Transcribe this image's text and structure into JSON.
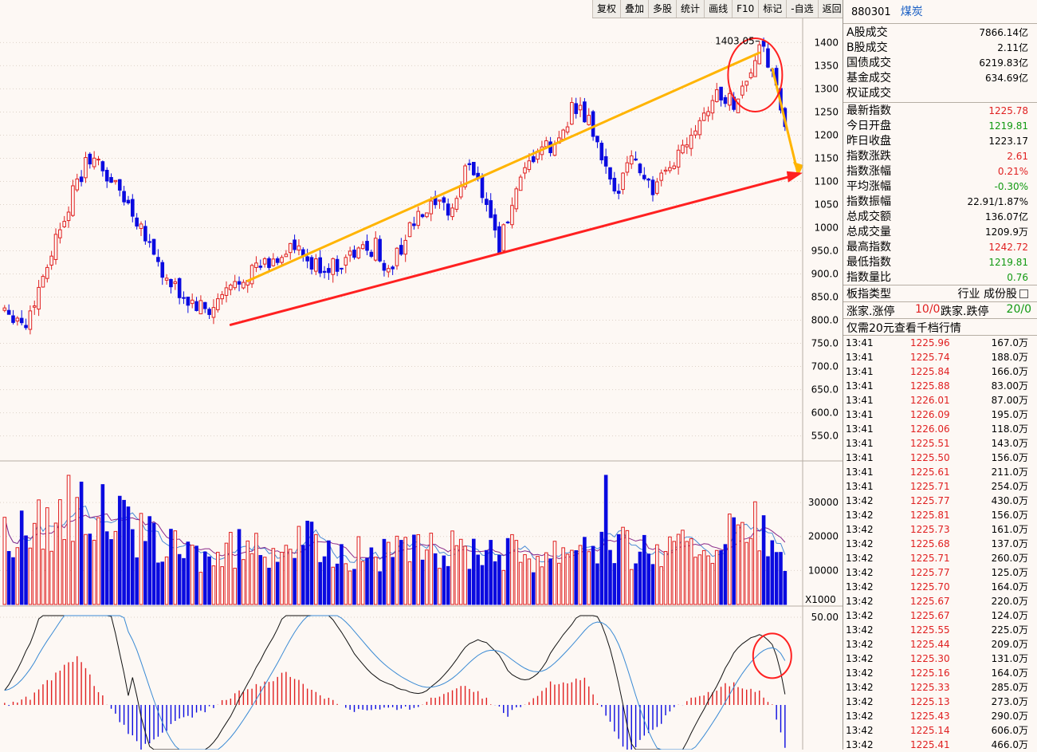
{
  "toolbar": [
    {
      "label": "复权",
      "name": "restore-rights-button"
    },
    {
      "label": "叠加",
      "name": "overlay-button"
    },
    {
      "label": "多股",
      "name": "multi-stock-button"
    },
    {
      "label": "统计",
      "name": "statistics-button"
    },
    {
      "label": "画线",
      "name": "draw-line-button"
    },
    {
      "label": "F10",
      "name": "f10-button"
    },
    {
      "label": "标记",
      "name": "mark-button"
    },
    {
      "label": "-自选",
      "name": "remove-watchlist-button"
    },
    {
      "label": "返回",
      "name": "back-button"
    }
  ],
  "stock": {
    "code": "880301",
    "name": "煤炭"
  },
  "summary": [
    {
      "label": "A股成交",
      "value": "7866.14亿",
      "color": "#000000"
    },
    {
      "label": "B股成交",
      "value": "2.11亿",
      "color": "#000000"
    },
    {
      "label": "国债成交",
      "value": "6219.83亿",
      "color": "#000000"
    },
    {
      "label": "基金成交",
      "value": "634.69亿",
      "color": "#000000"
    },
    {
      "label": "权证成交",
      "value": "",
      "color": "#000000"
    }
  ],
  "quote": [
    {
      "label": "最新指数",
      "value": "1225.78",
      "color": "#e02020"
    },
    {
      "label": "今日开盘",
      "value": "1219.81",
      "color": "#119911"
    },
    {
      "label": "昨日收盘",
      "value": "1223.17",
      "color": "#000000"
    },
    {
      "label": "指数涨跌",
      "value": "2.61",
      "color": "#e02020"
    },
    {
      "label": "指数涨幅",
      "value": "0.21%",
      "color": "#e02020"
    },
    {
      "label": "平均涨幅",
      "value": "-0.30%",
      "color": "#119911"
    },
    {
      "label": "指数振幅",
      "value": "22.91/1.87%",
      "color": "#000000"
    },
    {
      "label": "总成交额",
      "value": "136.07亿",
      "color": "#000000"
    },
    {
      "label": "总成交量",
      "value": "1209.9万",
      "color": "#000000"
    },
    {
      "label": "最高指数",
      "value": "1242.72",
      "color": "#e02020"
    },
    {
      "label": "最低指数",
      "value": "1219.81",
      "color": "#119911"
    },
    {
      "label": "指数量比",
      "value": "0.76",
      "color": "#119911"
    }
  ],
  "sector": {
    "label": "板指类型",
    "value": "行业 成份股"
  },
  "limits": {
    "up_label": "涨家.涨停",
    "up_value": "10/0",
    "down_label": "跌家.跌停",
    "down_value": "20/0"
  },
  "notice": "仅需20元查看千档行情",
  "ticks": [
    {
      "t": "13:41",
      "p": "1225.96",
      "v": "167.0万"
    },
    {
      "t": "13:41",
      "p": "1225.74",
      "v": "188.0万"
    },
    {
      "t": "13:41",
      "p": "1225.84",
      "v": "166.0万"
    },
    {
      "t": "13:41",
      "p": "1225.88",
      "v": "83.00万"
    },
    {
      "t": "13:41",
      "p": "1226.01",
      "v": "87.00万"
    },
    {
      "t": "13:41",
      "p": "1226.09",
      "v": "195.0万"
    },
    {
      "t": "13:41",
      "p": "1226.06",
      "v": "118.0万"
    },
    {
      "t": "13:41",
      "p": "1225.51",
      "v": "143.0万"
    },
    {
      "t": "13:41",
      "p": "1225.50",
      "v": "156.0万"
    },
    {
      "t": "13:41",
      "p": "1225.61",
      "v": "211.0万"
    },
    {
      "t": "13:41",
      "p": "1225.71",
      "v": "254.0万"
    },
    {
      "t": "13:42",
      "p": "1225.77",
      "v": "430.0万"
    },
    {
      "t": "13:42",
      "p": "1225.81",
      "v": "156.0万"
    },
    {
      "t": "13:42",
      "p": "1225.73",
      "v": "161.0万"
    },
    {
      "t": "13:42",
      "p": "1225.68",
      "v": "137.0万"
    },
    {
      "t": "13:42",
      "p": "1225.71",
      "v": "260.0万"
    },
    {
      "t": "13:42",
      "p": "1225.77",
      "v": "125.0万"
    },
    {
      "t": "13:42",
      "p": "1225.70",
      "v": "164.0万"
    },
    {
      "t": "13:42",
      "p": "1225.67",
      "v": "220.0万"
    },
    {
      "t": "13:42",
      "p": "1225.67",
      "v": "124.0万"
    },
    {
      "t": "13:42",
      "p": "1225.55",
      "v": "225.0万"
    },
    {
      "t": "13:42",
      "p": "1225.44",
      "v": "209.0万"
    },
    {
      "t": "13:42",
      "p": "1225.30",
      "v": "131.0万"
    },
    {
      "t": "13:42",
      "p": "1225.16",
      "v": "164.0万"
    },
    {
      "t": "13:42",
      "p": "1225.33",
      "v": "285.0万"
    },
    {
      "t": "13:42",
      "p": "1225.13",
      "v": "273.0万"
    },
    {
      "t": "13:42",
      "p": "1225.43",
      "v": "290.0万"
    },
    {
      "t": "13:42",
      "p": "1225.14",
      "v": "606.0万"
    },
    {
      "t": "13:42",
      "p": "1225.41",
      "v": "466.0万"
    }
  ],
  "chart_data": {
    "type": "candlestick",
    "price_axis": {
      "ticks": [
        550,
        600,
        650,
        700,
        750,
        800,
        850,
        900,
        950,
        1000,
        1050,
        1100,
        1150,
        1200,
        1250,
        1300,
        1350,
        1400
      ],
      "tick_labels": [
        "550.0",
        "600.0",
        "650.0",
        "700.0",
        "750.0",
        "800.0",
        "850.0",
        "900.0",
        "950.0",
        "1000",
        "1050",
        "1100",
        "1150",
        "1200",
        "1250",
        "1300",
        "1350",
        "1400"
      ],
      "range": [
        520,
        1430
      ]
    },
    "volume_axis": {
      "ticks": [
        10000,
        20000,
        30000
      ],
      "unit": "X1000",
      "range": [
        0,
        38000
      ]
    },
    "macd_axis": {
      "ticks": [
        50
      ],
      "tick_labels": [
        "50.00"
      ]
    },
    "high_annotation": "1403.05",
    "anchors": [
      {
        "i": 0,
        "p": 830
      },
      {
        "i": 5,
        "p": 790
      },
      {
        "i": 14,
        "p": 1030
      },
      {
        "i": 20,
        "p": 1155
      },
      {
        "i": 27,
        "p": 1080
      },
      {
        "i": 33,
        "p": 990
      },
      {
        "i": 38,
        "p": 880
      },
      {
        "i": 43,
        "p": 840
      },
      {
        "i": 48,
        "p": 815
      },
      {
        "i": 52,
        "p": 860
      },
      {
        "i": 57,
        "p": 905
      },
      {
        "i": 63,
        "p": 925
      },
      {
        "i": 67,
        "p": 960
      },
      {
        "i": 72,
        "p": 915
      },
      {
        "i": 77,
        "p": 915
      },
      {
        "i": 82,
        "p": 945
      },
      {
        "i": 87,
        "p": 960
      },
      {
        "i": 90,
        "p": 900
      },
      {
        "i": 95,
        "p": 1000
      },
      {
        "i": 100,
        "p": 1040
      },
      {
        "i": 105,
        "p": 1040
      },
      {
        "i": 109,
        "p": 1145
      },
      {
        "i": 113,
        "p": 1060
      },
      {
        "i": 116,
        "p": 960
      },
      {
        "i": 119,
        "p": 1050
      },
      {
        "i": 125,
        "p": 1170
      },
      {
        "i": 129,
        "p": 1170
      },
      {
        "i": 133,
        "p": 1260
      },
      {
        "i": 137,
        "p": 1230
      },
      {
        "i": 141,
        "p": 1120
      },
      {
        "i": 143,
        "p": 1060
      },
      {
        "i": 146,
        "p": 1160
      },
      {
        "i": 149,
        "p": 1130
      },
      {
        "i": 152,
        "p": 1080
      },
      {
        "i": 155,
        "p": 1110
      },
      {
        "i": 159,
        "p": 1180
      },
      {
        "i": 163,
        "p": 1240
      },
      {
        "i": 167,
        "p": 1290
      },
      {
        "i": 171,
        "p": 1270
      },
      {
        "i": 174,
        "p": 1320
      },
      {
        "i": 177,
        "p": 1385
      },
      {
        "i": 179,
        "p": 1360
      },
      {
        "i": 181,
        "p": 1290
      },
      {
        "i": 183,
        "p": 1225
      }
    ],
    "volume_anchors": [
      {
        "i": 0,
        "v": 22000
      },
      {
        "i": 12,
        "v": 28000
      },
      {
        "i": 22,
        "v": 30000
      },
      {
        "i": 35,
        "v": 20000
      },
      {
        "i": 48,
        "v": 15000
      },
      {
        "i": 58,
        "v": 19000
      },
      {
        "i": 70,
        "v": 20000
      },
      {
        "i": 85,
        "v": 16000
      },
      {
        "i": 100,
        "v": 17000
      },
      {
        "i": 112,
        "v": 19000
      },
      {
        "i": 126,
        "v": 16000
      },
      {
        "i": 136,
        "v": 22000
      },
      {
        "i": 143,
        "v": 19000
      },
      {
        "i": 156,
        "v": 17000
      },
      {
        "i": 168,
        "v": 21000
      },
      {
        "i": 177,
        "v": 25000
      },
      {
        "i": 183,
        "v": 12000
      }
    ],
    "volume_spikes": [
      {
        "i": 15,
        "v": 38000
      },
      {
        "i": 18,
        "v": 36000
      },
      {
        "i": 141,
        "v": 38000
      }
    ],
    "macd_hist_anchors": [
      {
        "i": 0,
        "v": 0
      },
      {
        "i": 6,
        "v": 4
      },
      {
        "i": 17,
        "v": 28
      },
      {
        "i": 24,
        "v": 0
      },
      {
        "i": 32,
        "v": -25
      },
      {
        "i": 40,
        "v": -10
      },
      {
        "i": 48,
        "v": -2
      },
      {
        "i": 56,
        "v": 8
      },
      {
        "i": 66,
        "v": 18
      },
      {
        "i": 74,
        "v": 6
      },
      {
        "i": 82,
        "v": -3
      },
      {
        "i": 95,
        "v": -2
      },
      {
        "i": 108,
        "v": 12
      },
      {
        "i": 118,
        "v": -6
      },
      {
        "i": 128,
        "v": 12
      },
      {
        "i": 136,
        "v": 15
      },
      {
        "i": 146,
        "v": -28
      },
      {
        "i": 158,
        "v": 0
      },
      {
        "i": 170,
        "v": 12
      },
      {
        "i": 177,
        "v": 8
      },
      {
        "i": 180,
        "v": 0
      },
      {
        "i": 183,
        "v": -25
      }
    ],
    "annotations": [
      {
        "type": "trendline",
        "color": "#ffb400",
        "from": {
          "i": 57,
          "p": 885
        },
        "to": {
          "i": 177,
          "p": 1378
        }
      },
      {
        "type": "trendline",
        "color": "#ff2020",
        "from": {
          "i": 53,
          "p": 790
        },
        "to": {
          "i": 186,
          "p": 1115
        }
      },
      {
        "type": "arrow",
        "color": "#ffb400",
        "from": {
          "i": 180,
          "p": 1345
        },
        "to": {
          "i": 186,
          "p": 1118
        }
      },
      {
        "type": "circle",
        "color": "#ff2020",
        "target": "price-high"
      },
      {
        "type": "circle",
        "color": "#ff2020",
        "target": "macd-cross"
      }
    ]
  },
  "colors": {
    "up": "#e02020",
    "down": "#0a0ae0",
    "ma1": "#4a8ad4",
    "ma2": "#8a2a8a",
    "dif": "#111111",
    "dea": "#3a8ad4",
    "trend_yellow": "#ffb400",
    "trend_red": "#ff2020"
  }
}
